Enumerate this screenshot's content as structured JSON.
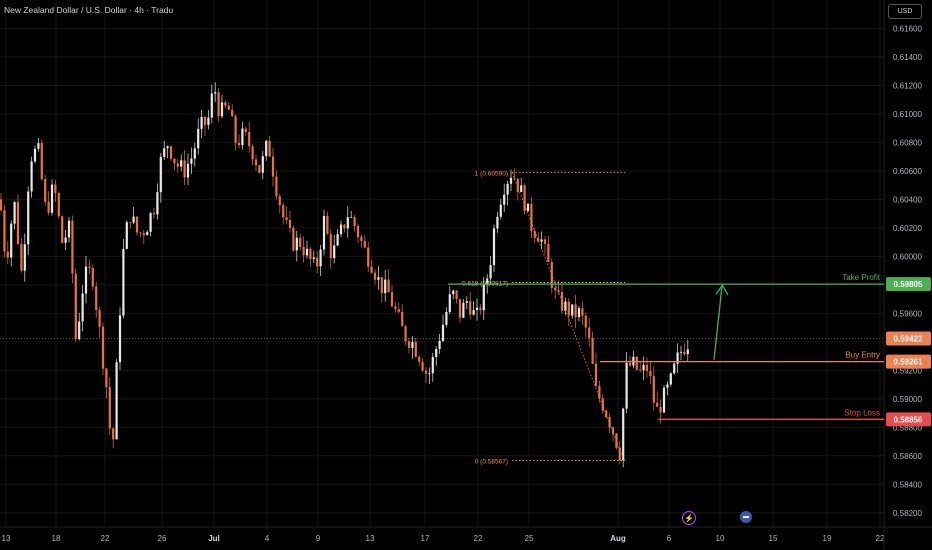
{
  "header": {
    "title": "New Zealand Dollar / U.S. Dollar · 4h · Tradu",
    "currency": "USD"
  },
  "colors": {
    "background": "#000000",
    "grid": "#161616",
    "candle_up": "#e8e8e8",
    "candle_down": "#e8743a",
    "take_profit": "#4caf50",
    "buy_entry": "#f08050",
    "stop_loss": "#e84b4b",
    "fib": "#f58b35",
    "fib_level": "#c9d34a",
    "last_price": "#f08050",
    "axis_text": "#b2b5be"
  },
  "chart_data": {
    "type": "candlestick",
    "title": "New Zealand Dollar / U.S. Dollar · 4h · Tradu",
    "ylabel": "USD",
    "ylim": [
      0.581,
      0.618
    ],
    "y_ticks": [
      "0.61600",
      "0.61400",
      "0.61200",
      "0.61000",
      "0.60800",
      "0.60600",
      "0.60400",
      "0.60200",
      "0.60000",
      "0.59800",
      "0.59600",
      "0.59400",
      "0.59200",
      "0.59000",
      "0.58800",
      "0.58600",
      "0.58400",
      "0.58200"
    ],
    "x_ticks": [
      "13",
      "18",
      "22",
      "26",
      "Jul",
      "4",
      "9",
      "13",
      "17",
      "22",
      "25",
      "Aug",
      "6",
      "10",
      "15",
      "19",
      "22"
    ],
    "price_path": [
      [
        0,
        0.604
      ],
      [
        6,
        0.5995
      ],
      [
        14,
        0.604
      ],
      [
        22,
        0.5985
      ],
      [
        30,
        0.607
      ],
      [
        38,
        0.6075
      ],
      [
        46,
        0.603
      ],
      [
        54,
        0.605
      ],
      [
        62,
        0.601
      ],
      [
        70,
        0.602
      ],
      [
        76,
        0.594
      ],
      [
        84,
        0.5985
      ],
      [
        92,
        0.599
      ],
      [
        100,
        0.5945
      ],
      [
        108,
        0.59
      ],
      [
        112,
        0.5855
      ],
      [
        118,
        0.594
      ],
      [
        124,
        0.601
      ],
      [
        130,
        0.603
      ],
      [
        138,
        0.6015
      ],
      [
        146,
        0.602
      ],
      [
        154,
        0.6035
      ],
      [
        160,
        0.6065
      ],
      [
        168,
        0.608
      ],
      [
        176,
        0.6065
      ],
      [
        184,
        0.606
      ],
      [
        192,
        0.607
      ],
      [
        200,
        0.609
      ],
      [
        208,
        0.6095
      ],
      [
        214,
        0.612
      ],
      [
        220,
        0.61
      ],
      [
        228,
        0.6105
      ],
      [
        236,
        0.608
      ],
      [
        244,
        0.6085
      ],
      [
        252,
        0.6075
      ],
      [
        260,
        0.606
      ],
      [
        268,
        0.608
      ],
      [
        276,
        0.605
      ],
      [
        284,
        0.6025
      ],
      [
        292,
        0.601
      ],
      [
        300,
        0.601
      ],
      [
        308,
        0.6
      ],
      [
        316,
        0.599
      ],
      [
        324,
        0.6025
      ],
      [
        332,
        0.6
      ],
      [
        340,
        0.6015
      ],
      [
        348,
        0.603
      ],
      [
        356,
        0.602
      ],
      [
        364,
        0.6005
      ],
      [
        372,
        0.5995
      ],
      [
        380,
        0.598
      ],
      [
        388,
        0.5975
      ],
      [
        396,
        0.596
      ],
      [
        404,
        0.5945
      ],
      [
        412,
        0.594
      ],
      [
        420,
        0.593
      ],
      [
        428,
        0.5915
      ],
      [
        436,
        0.5935
      ],
      [
        444,
        0.5955
      ],
      [
        452,
        0.5975
      ],
      [
        460,
        0.596
      ],
      [
        468,
        0.597
      ],
      [
        476,
        0.5955
      ],
      [
        484,
        0.5975
      ],
      [
        490,
        0.5995
      ],
      [
        496,
        0.603
      ],
      [
        504,
        0.605
      ],
      [
        512,
        0.606
      ],
      [
        518,
        0.605
      ],
      [
        524,
        0.604
      ],
      [
        532,
        0.602
      ],
      [
        540,
        0.6015
      ],
      [
        548,
        0.5995
      ],
      [
        556,
        0.597
      ],
      [
        564,
        0.5965
      ],
      [
        572,
        0.596
      ],
      [
        580,
        0.596
      ],
      [
        588,
        0.5945
      ],
      [
        596,
        0.5905
      ],
      [
        604,
        0.5895
      ],
      [
        612,
        0.588
      ],
      [
        620,
        0.5862
      ],
      [
        626,
        0.592
      ],
      [
        632,
        0.5925
      ],
      [
        640,
        0.5918
      ],
      [
        648,
        0.5922
      ],
      [
        656,
        0.589
      ],
      [
        662,
        0.5898
      ],
      [
        670,
        0.591
      ],
      [
        676,
        0.5925
      ],
      [
        682,
        0.5935
      ],
      [
        688,
        0.594
      ]
    ],
    "fib_levels": [
      {
        "label": "1 (0.60590)",
        "price": 0.6059
      },
      {
        "label": "0.618 (0.59817)",
        "price": 0.59817
      },
      {
        "label": "0 (0.58567)",
        "price": 0.58567
      }
    ],
    "levels": [
      {
        "name": "Take Profit",
        "price": 0.59805,
        "price_label": "0.59805"
      },
      {
        "name": "Buy Entry",
        "price": 0.59261,
        "price_label": "0.59261"
      },
      {
        "name": "Stop Loss",
        "price": 0.58856,
        "price_label": "0.58856"
      }
    ],
    "last_price": {
      "price": 0.59423,
      "price_label": "0.59423"
    },
    "projection": {
      "from_price": 0.59261,
      "to_price": 0.59805
    }
  }
}
